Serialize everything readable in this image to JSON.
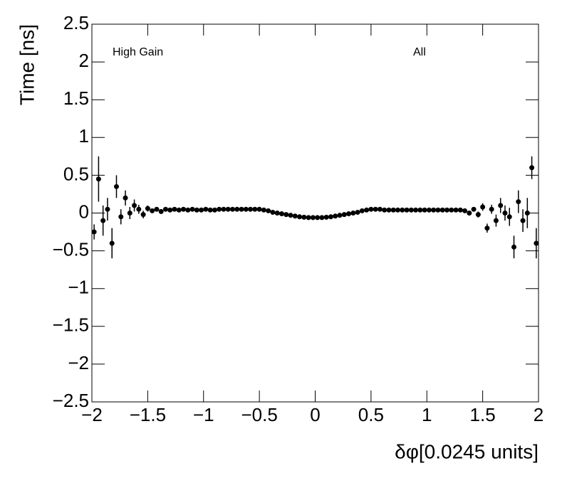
{
  "chart_data": {
    "type": "scatter",
    "x_label": "δφ[0.0245 units]",
    "y_label": "Time [ns]",
    "annotations": [
      "High Gain",
      "All"
    ],
    "xlim": [
      -2,
      2
    ],
    "ylim": [
      -2.5,
      2.5
    ],
    "xticks": [
      {
        "value": -2,
        "label": "−2"
      },
      {
        "value": -1.5,
        "label": "−1.5"
      },
      {
        "value": -1,
        "label": "−1"
      },
      {
        "value": -0.5,
        "label": "−0.5"
      },
      0,
      0.5,
      1,
      1.5,
      2
    ],
    "yticks": [
      {
        "value": -2.5,
        "label": "−2.5"
      },
      {
        "value": -2,
        "label": "−2"
      },
      {
        "value": -1.5,
        "label": "−1.5"
      },
      {
        "value": -1,
        "label": "−1"
      },
      {
        "value": -0.5,
        "label": "−0.5"
      },
      0,
      0.5,
      1,
      1.5,
      2,
      2.5
    ],
    "series": [
      {
        "color": "#000000",
        "x": [
          -1.98,
          -1.94,
          -1.9,
          -1.86,
          -1.82,
          -1.78,
          -1.74,
          -1.7,
          -1.66,
          -1.62,
          -1.58,
          -1.54,
          -1.5,
          -1.46,
          -1.42,
          -1.38,
          -1.34,
          -1.3,
          -1.26,
          -1.22,
          -1.18,
          -1.14,
          -1.1,
          -1.06,
          -1.02,
          -0.98,
          -0.94,
          -0.9,
          -0.86,
          -0.82,
          -0.78,
          -0.74,
          -0.7,
          -0.66,
          -0.62,
          -0.58,
          -0.54,
          -0.5,
          -0.46,
          -0.42,
          -0.38,
          -0.34,
          -0.3,
          -0.26,
          -0.22,
          -0.18,
          -0.14,
          -0.1,
          -0.06,
          -0.02,
          0.02,
          0.06,
          0.1,
          0.14,
          0.18,
          0.22,
          0.26,
          0.3,
          0.34,
          0.38,
          0.42,
          0.46,
          0.5,
          0.54,
          0.58,
          0.62,
          0.66,
          0.7,
          0.74,
          0.78,
          0.82,
          0.86,
          0.9,
          0.94,
          0.98,
          1.02,
          1.06,
          1.1,
          1.14,
          1.18,
          1.22,
          1.26,
          1.3,
          1.34,
          1.38,
          1.42,
          1.46,
          1.5,
          1.54,
          1.58,
          1.62,
          1.66,
          1.7,
          1.74,
          1.78,
          1.82,
          1.86,
          1.9,
          1.94,
          1.98
        ],
        "values": [
          -0.25,
          0.45,
          -0.1,
          0.05,
          -0.4,
          0.35,
          -0.05,
          0.2,
          0,
          0.1,
          0.05,
          -0.02,
          0.06,
          0.03,
          0.05,
          0.02,
          0.05,
          0.04,
          0.05,
          0.04,
          0.05,
          0.04,
          0.05,
          0.04,
          0.04,
          0.05,
          0.04,
          0.04,
          0.05,
          0.05,
          0.05,
          0.05,
          0.05,
          0.05,
          0.05,
          0.05,
          0.05,
          0.05,
          0.04,
          0.03,
          0.01,
          0,
          -0.01,
          -0.02,
          -0.03,
          -0.04,
          -0.05,
          -0.055,
          -0.06,
          -0.06,
          -0.06,
          -0.06,
          -0.055,
          -0.05,
          -0.04,
          -0.03,
          -0.02,
          -0.01,
          0,
          0.01,
          0.03,
          0.04,
          0.05,
          0.05,
          0.05,
          0.04,
          0.04,
          0.04,
          0.04,
          0.04,
          0.04,
          0.04,
          0.04,
          0.04,
          0.04,
          0.04,
          0.04,
          0.04,
          0.04,
          0.04,
          0.04,
          0.04,
          0.04,
          0.03,
          0,
          0.05,
          -0.02,
          0.08,
          -0.2,
          0.05,
          -0.1,
          0.1,
          0,
          -0.05,
          -0.45,
          0.15,
          -0.1,
          0,
          0.6,
          -0.4
        ],
        "errors": [
          0.1,
          0.3,
          0.2,
          0.15,
          0.2,
          0.15,
          0.1,
          0.1,
          0.08,
          0.08,
          0.06,
          0.05,
          0.04,
          0.03,
          0.03,
          0.02,
          0.02,
          0.01,
          0.01,
          0.01,
          0.01,
          0.01,
          0.01,
          0.01,
          0.01,
          0.01,
          0.01,
          0.01,
          0.01,
          0.01,
          0.01,
          0.01,
          0.01,
          0.01,
          0.01,
          0.01,
          0.01,
          0.01,
          0.01,
          0.01,
          0.01,
          0.01,
          0.01,
          0.01,
          0.01,
          0.01,
          0.01,
          0.01,
          0.01,
          0.01,
          0.01,
          0.01,
          0.01,
          0.01,
          0.01,
          0.01,
          0.01,
          0.01,
          0.01,
          0.01,
          0.01,
          0.01,
          0.01,
          0.01,
          0.01,
          0.01,
          0.01,
          0.01,
          0.01,
          0.01,
          0.01,
          0.01,
          0.01,
          0.01,
          0.01,
          0.01,
          0.01,
          0.01,
          0.01,
          0.01,
          0.01,
          0.01,
          0.02,
          0.02,
          0.03,
          0.03,
          0.04,
          0.05,
          0.06,
          0.06,
          0.08,
          0.1,
          0.1,
          0.12,
          0.15,
          0.15,
          0.15,
          0.2,
          0.15,
          0.2
        ]
      }
    ]
  }
}
